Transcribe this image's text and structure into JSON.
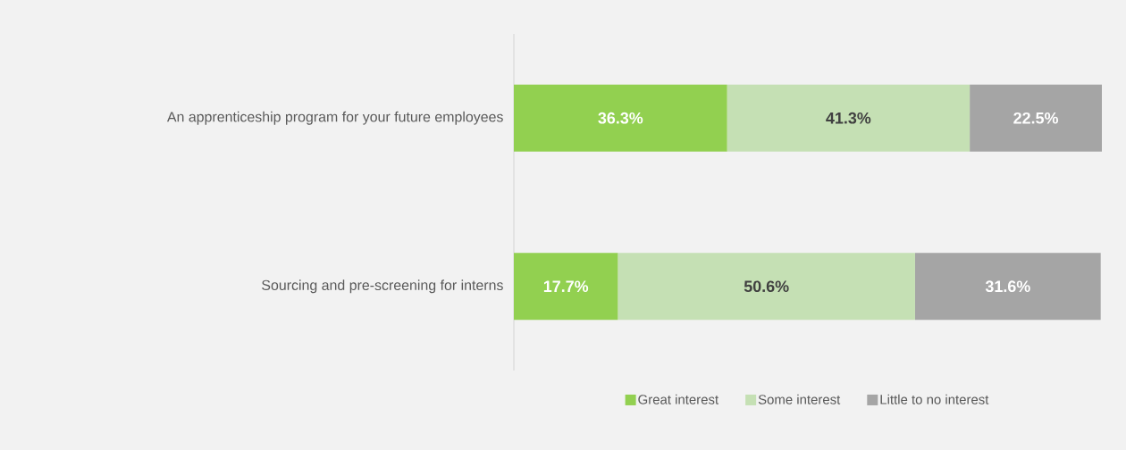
{
  "chart_data": {
    "type": "bar",
    "orientation": "horizontal",
    "stacked": true,
    "categories": [
      "An apprenticeship program for your future employees",
      "Sourcing and pre-screening for interns"
    ],
    "series": [
      {
        "name": "Great interest",
        "color": "#92d050",
        "values": [
          36.3,
          17.7
        ],
        "value_labels": [
          "36.3%",
          "17.7%"
        ]
      },
      {
        "name": "Some interest",
        "color": "#c5e0b4",
        "values": [
          41.3,
          50.6
        ],
        "value_labels": [
          "41.3%",
          "50.6%"
        ]
      },
      {
        "name": "Little to no interest",
        "color": "#a5a5a5",
        "values": [
          22.5,
          31.6
        ],
        "value_labels": [
          "22.5%",
          "31.6%"
        ]
      }
    ],
    "legend": "bottom"
  }
}
